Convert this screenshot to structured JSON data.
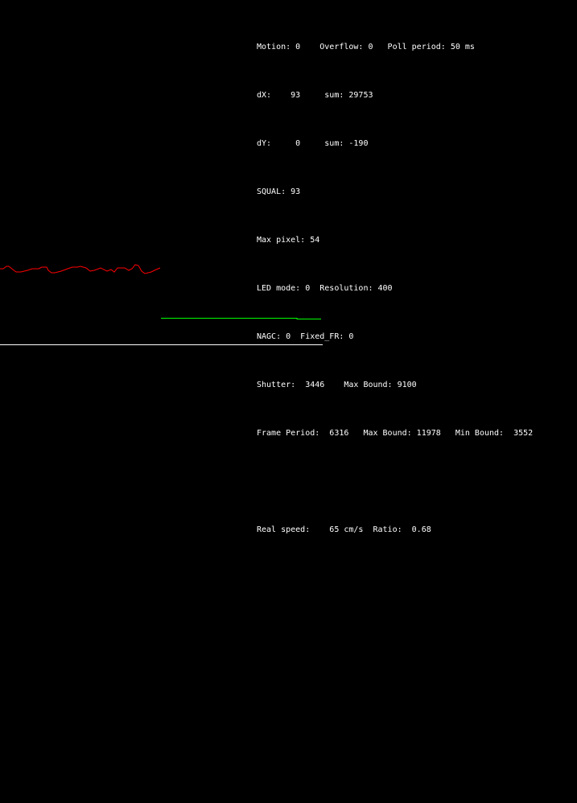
{
  "readout": {
    "lines": [
      "Motion: 0    Overflow: 0   Poll period: 50 ms",
      "dX:    93     sum: 29753",
      "dY:     0     sum: -190",
      "SQUAL: 93",
      "Max pixel: 54",
      "LED mode: 0  Resolution: 400",
      "NAGC: 0  Fixed_FR: 0",
      "Shutter:  3446    Max Bound: 9100",
      "Frame Period:  6316   Max Bound: 11978   Min Bound:  3552",
      "",
      "Real speed:    65 cm/s  Ratio:  0.68"
    ]
  },
  "colors": {
    "background": "#000000",
    "text": "#ffffff",
    "trace": "#ff0000",
    "level": "#00ff00",
    "baseline": "#ffffff"
  }
}
